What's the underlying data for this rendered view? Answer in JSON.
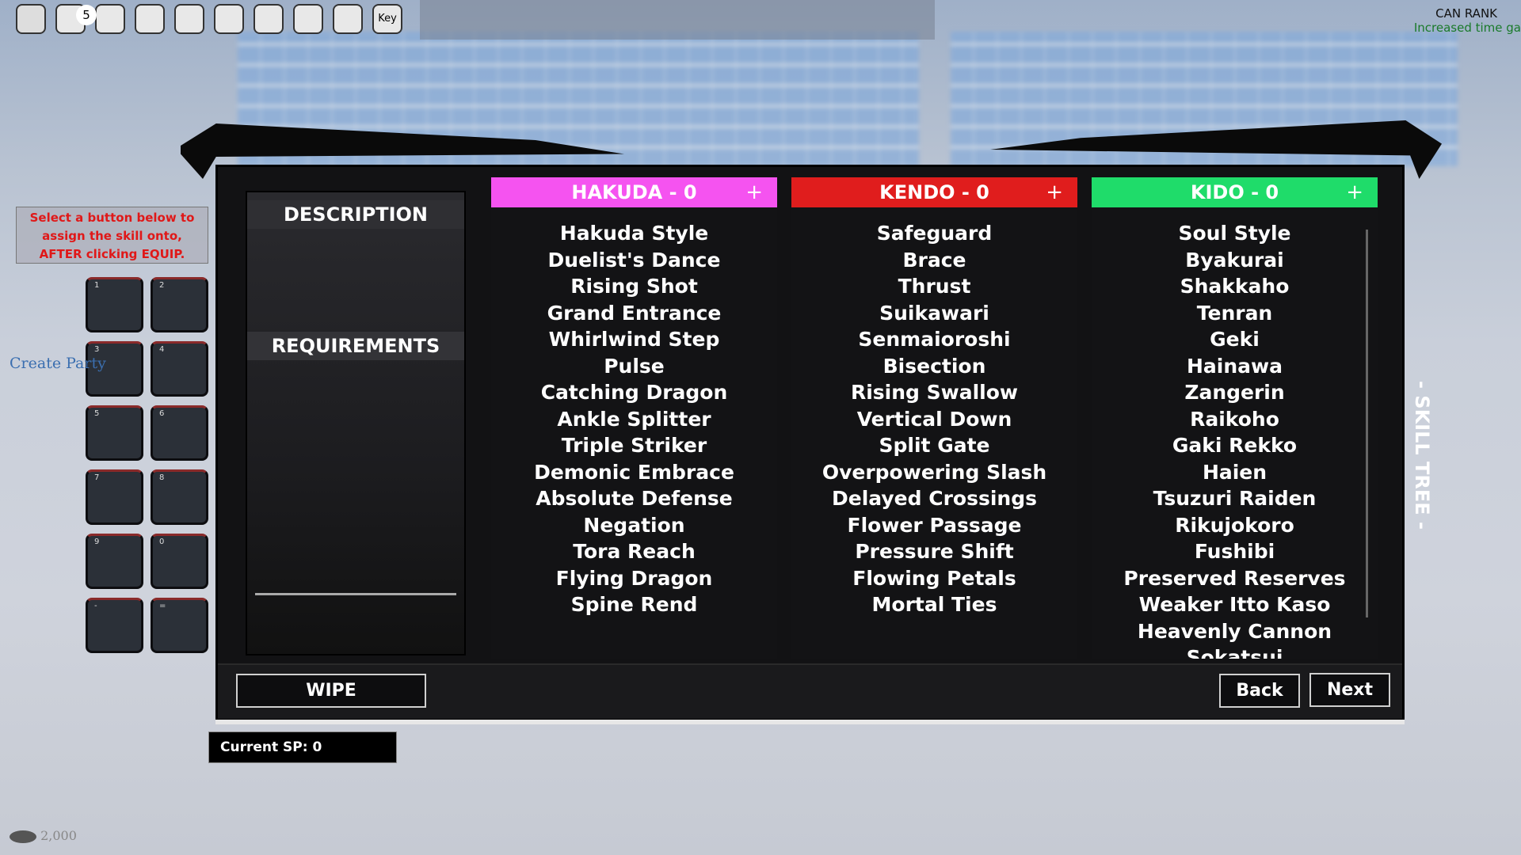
{
  "top_bar": {
    "badge": "5",
    "key_button": "Key"
  },
  "rank": {
    "title": "CAN RANK",
    "subtitle": "Increased time ga"
  },
  "hint": "Select a button below to assign the skill onto, AFTER clicking EQUIP.",
  "slots": [
    "1",
    "2",
    "3",
    "4",
    "5",
    "6",
    "7",
    "8",
    "9",
    "0",
    "-",
    "="
  ],
  "party_label": "Create Party",
  "currency": "2,000",
  "panel": {
    "description": "DESCRIPTION",
    "requirements": "REQUIREMENTS",
    "columns": [
      {
        "title": "HAKUDA - 0",
        "add": "+",
        "color": "#f553f0",
        "skills": [
          "Hakuda Style",
          "Duelist's Dance",
          "Rising Shot",
          "Grand Entrance",
          "Whirlwind Step",
          "Pulse",
          "Catching Dragon",
          "Ankle Splitter",
          "Triple Striker",
          "Demonic Embrace",
          "Absolute Defense",
          "Negation",
          "Tora Reach",
          "Flying Dragon",
          "Spine Rend"
        ]
      },
      {
        "title": "KENDO - 0",
        "add": "+",
        "color": "#e01d1d",
        "skills": [
          "Safeguard",
          "Brace",
          "Thrust",
          "Suikawari",
          "Senmaioroshi",
          "Bisection",
          "Rising Swallow",
          "Vertical Down",
          "Split Gate",
          "Overpowering Slash",
          "Delayed Crossings",
          "Flower Passage",
          "Pressure Shift",
          "Flowing Petals",
          "Mortal Ties"
        ]
      },
      {
        "title": "KIDO - 0",
        "add": "+",
        "color": "#1fdc6a",
        "skills": [
          "Soul Style",
          "Byakurai",
          "Shakkaho",
          "Tenran",
          "Geki",
          "Hainawa",
          "Zangerin",
          "Raikoho",
          "Gaki Rekko",
          "Haien",
          "Tsuzuri Raiden",
          "Rikujokoro",
          "Fushibi",
          "Preserved Reserves",
          "Weaker Itto Kaso",
          "Heavenly Cannon",
          "Sokatsui"
        ]
      }
    ],
    "wipe": "WIPE",
    "back": "Back",
    "next": "Next",
    "side_label": "- SKILL TREE -"
  },
  "current_sp": "Current SP: 0"
}
